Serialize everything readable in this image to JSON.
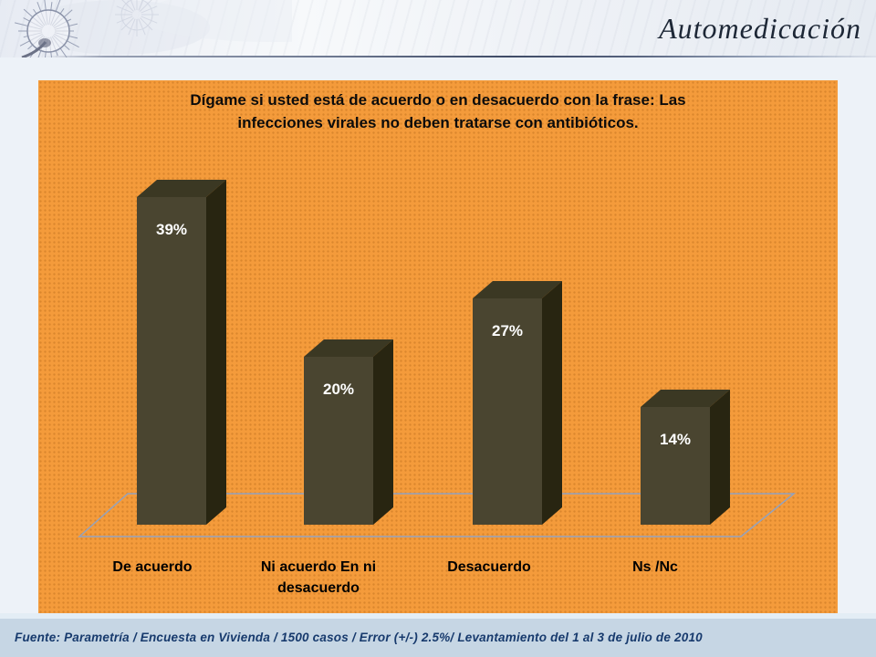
{
  "header": {
    "title": "Automedicación"
  },
  "chart": {
    "title_lines": [
      "Dígame si usted está de acuerdo o en desacuerdo con la frase: Las",
      "infecciones virales no deben tratarse con antibióticos."
    ]
  },
  "chart_data": {
    "type": "bar",
    "variant": "3d-column",
    "title": "Dígame si usted está de acuerdo o en desacuerdo con la frase: Las infecciones virales no deben tratarse con antibióticos.",
    "categories": [
      "De acuerdo",
      "Ni acuerdo En ni desacuerdo",
      "Desacuerdo",
      "Ns /Nc"
    ],
    "values": [
      39,
      20,
      27,
      14
    ],
    "value_labels": [
      "39%",
      "20%",
      "27%",
      "14%"
    ],
    "unit": "percent",
    "ylim": [
      0,
      45
    ],
    "grid": false,
    "legend": false,
    "colors": {
      "plot_background": "#F49B3B",
      "bar_front": "#4A4530",
      "bar_top": "#3B3823",
      "bar_side": "#282511",
      "floor_line": "#93A2BE",
      "value_label": "#FFFFFF",
      "category_label": "#000000"
    }
  },
  "footer": {
    "source": "Fuente: Parametría / Encuesta en Vivienda / 1500 casos / Error (+/-) 2.5%/ Levantamiento del 1 al 3 de julio de 2010"
  }
}
